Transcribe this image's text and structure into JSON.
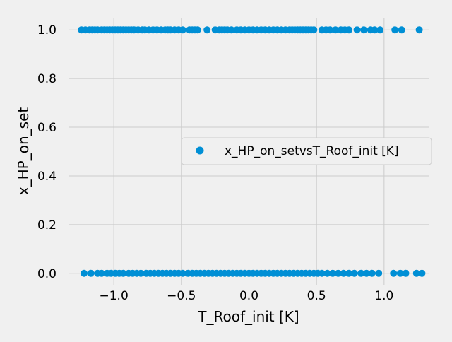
{
  "chart_data": {
    "type": "scatter",
    "title": "",
    "xlabel": "T_Roof_init [K]",
    "ylabel": "x_HP_on_set",
    "xlim": [
      -1.33,
      1.33
    ],
    "ylim": [
      -0.05,
      1.05
    ],
    "xticks": [
      -1.0,
      -0.5,
      0.0,
      0.5,
      1.0
    ],
    "xtick_labels": [
      "−1.0",
      "−0.5",
      "0.0",
      "0.5",
      "1.0"
    ],
    "yticks": [
      0.0,
      0.2,
      0.4,
      0.6,
      0.8,
      1.0
    ],
    "ytick_labels": [
      "0.0",
      "0.2",
      "0.4",
      "0.6",
      "0.8",
      "1.0"
    ],
    "grid": true,
    "legend_position": "center-right",
    "series": [
      {
        "name": "x_HP_on_setvsT_Roof_init [K]",
        "color": "#008fd5",
        "marker": "circle",
        "points": [
          [
            -1.24,
            1
          ],
          [
            -1.21,
            1
          ],
          [
            -1.18,
            1
          ],
          [
            -1.16,
            1
          ],
          [
            -1.14,
            1
          ],
          [
            -1.12,
            1
          ],
          [
            -1.09,
            1
          ],
          [
            -1.07,
            1
          ],
          [
            -1.05,
            1
          ],
          [
            -1.03,
            1
          ],
          [
            -1.01,
            1
          ],
          [
            -0.99,
            1
          ],
          [
            -0.97,
            1
          ],
          [
            -0.95,
            1
          ],
          [
            -0.93,
            1
          ],
          [
            -0.91,
            1
          ],
          [
            -0.89,
            1
          ],
          [
            -0.87,
            1
          ],
          [
            -0.85,
            1
          ],
          [
            -0.82,
            1
          ],
          [
            -0.79,
            1
          ],
          [
            -0.77,
            1
          ],
          [
            -0.74,
            1
          ],
          [
            -0.71,
            1
          ],
          [
            -0.68,
            1
          ],
          [
            -0.65,
            1
          ],
          [
            -0.62,
            1
          ],
          [
            -0.6,
            1
          ],
          [
            -0.58,
            1
          ],
          [
            -0.55,
            1
          ],
          [
            -0.52,
            1
          ],
          [
            -0.49,
            1
          ],
          [
            -0.44,
            1
          ],
          [
            -0.42,
            1
          ],
          [
            -0.4,
            1
          ],
          [
            -0.38,
            1
          ],
          [
            -0.31,
            1
          ],
          [
            -0.25,
            1
          ],
          [
            -0.22,
            1
          ],
          [
            -0.2,
            1
          ],
          [
            -0.18,
            1
          ],
          [
            -0.16,
            1
          ],
          [
            -0.13,
            1
          ],
          [
            -0.09,
            1
          ],
          [
            -0.06,
            1
          ],
          [
            -0.03,
            1
          ],
          [
            0.0,
            1
          ],
          [
            0.03,
            1
          ],
          [
            0.06,
            1
          ],
          [
            0.09,
            1
          ],
          [
            0.12,
            1
          ],
          [
            0.15,
            1
          ],
          [
            0.18,
            1
          ],
          [
            0.21,
            1
          ],
          [
            0.24,
            1
          ],
          [
            0.27,
            1
          ],
          [
            0.3,
            1
          ],
          [
            0.32,
            1
          ],
          [
            0.34,
            1
          ],
          [
            0.36,
            1
          ],
          [
            0.38,
            1
          ],
          [
            0.4,
            1
          ],
          [
            0.42,
            1
          ],
          [
            0.44,
            1
          ],
          [
            0.46,
            1
          ],
          [
            0.48,
            1
          ],
          [
            0.54,
            1
          ],
          [
            0.57,
            1
          ],
          [
            0.6,
            1
          ],
          [
            0.64,
            1
          ],
          [
            0.68,
            1
          ],
          [
            0.71,
            1
          ],
          [
            0.74,
            1
          ],
          [
            0.8,
            1
          ],
          [
            0.85,
            1
          ],
          [
            0.9,
            1
          ],
          [
            0.93,
            1
          ],
          [
            0.97,
            1
          ],
          [
            1.08,
            1
          ],
          [
            1.13,
            1
          ],
          [
            1.26,
            1
          ],
          [
            -1.22,
            0
          ],
          [
            -1.17,
            0
          ],
          [
            -1.12,
            0
          ],
          [
            -1.09,
            0
          ],
          [
            -1.05,
            0
          ],
          [
            -1.02,
            0
          ],
          [
            -0.99,
            0
          ],
          [
            -0.96,
            0
          ],
          [
            -0.93,
            0
          ],
          [
            -0.89,
            0
          ],
          [
            -0.86,
            0
          ],
          [
            -0.83,
            0
          ],
          [
            -0.8,
            0
          ],
          [
            -0.76,
            0
          ],
          [
            -0.73,
            0
          ],
          [
            -0.7,
            0
          ],
          [
            -0.67,
            0
          ],
          [
            -0.64,
            0
          ],
          [
            -0.61,
            0
          ],
          [
            -0.58,
            0
          ],
          [
            -0.55,
            0
          ],
          [
            -0.52,
            0
          ],
          [
            -0.49,
            0
          ],
          [
            -0.45,
            0
          ],
          [
            -0.42,
            0
          ],
          [
            -0.39,
            0
          ],
          [
            -0.36,
            0
          ],
          [
            -0.33,
            0
          ],
          [
            -0.3,
            0
          ],
          [
            -0.27,
            0
          ],
          [
            -0.24,
            0
          ],
          [
            -0.21,
            0
          ],
          [
            -0.18,
            0
          ],
          [
            -0.15,
            0
          ],
          [
            -0.12,
            0
          ],
          [
            -0.09,
            0
          ],
          [
            -0.06,
            0
          ],
          [
            -0.03,
            0
          ],
          [
            0.0,
            0
          ],
          [
            0.03,
            0
          ],
          [
            0.06,
            0
          ],
          [
            0.09,
            0
          ],
          [
            0.12,
            0
          ],
          [
            0.15,
            0
          ],
          [
            0.18,
            0
          ],
          [
            0.21,
            0
          ],
          [
            0.24,
            0
          ],
          [
            0.27,
            0
          ],
          [
            0.3,
            0
          ],
          [
            0.33,
            0
          ],
          [
            0.36,
            0
          ],
          [
            0.39,
            0
          ],
          [
            0.42,
            0
          ],
          [
            0.45,
            0
          ],
          [
            0.48,
            0
          ],
          [
            0.51,
            0
          ],
          [
            0.54,
            0
          ],
          [
            0.58,
            0
          ],
          [
            0.62,
            0
          ],
          [
            0.66,
            0
          ],
          [
            0.7,
            0
          ],
          [
            0.74,
            0
          ],
          [
            0.78,
            0
          ],
          [
            0.83,
            0
          ],
          [
            0.87,
            0
          ],
          [
            0.91,
            0
          ],
          [
            0.96,
            0
          ],
          [
            1.07,
            0
          ],
          [
            1.12,
            0
          ],
          [
            1.16,
            0
          ],
          [
            1.24,
            0
          ],
          [
            1.28,
            0
          ]
        ]
      }
    ]
  }
}
